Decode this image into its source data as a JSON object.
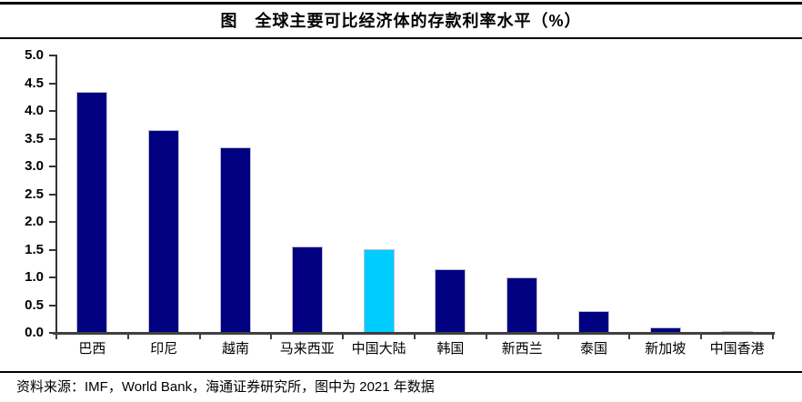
{
  "header": {
    "title": "图　全球主要可比经济体的存款利率水平（%）"
  },
  "footer": {
    "source": "资料来源：IMF，World Bank，海通证券研究所，图中为 2021 年数据"
  },
  "colors": {
    "bar": "#000080",
    "highlight": "#00ccff",
    "axis": "#404040",
    "bar_border": "#bdbdd6",
    "rule": "#000000"
  },
  "chart_data": {
    "type": "bar",
    "title": "图　全球主要可比经济体的存款利率水平（%）",
    "categories": [
      "巴西",
      "印尼",
      "越南",
      "马来西亚",
      "中国大陆",
      "韩国",
      "新西兰",
      "泰国",
      "新加坡",
      "中国香港"
    ],
    "values": [
      4.35,
      3.65,
      3.35,
      1.55,
      1.5,
      1.15,
      1.0,
      0.4,
      0.1,
      0.02
    ],
    "unit": "%",
    "xlabel": "",
    "ylabel": "",
    "ylim": [
      0,
      5
    ],
    "ytick_step": 0.5,
    "yticks": [
      "5.0",
      "4.5",
      "4.0",
      "3.5",
      "3.0",
      "2.5",
      "2.0",
      "1.5",
      "1.0",
      "0.5",
      "0.0"
    ],
    "grid": false,
    "legend": null,
    "highlight_index": 4,
    "highlight_category": "中国大陆",
    "bar_color": "#000080",
    "highlight_color": "#00ccff",
    "note": "图中为 2021 年数据"
  }
}
